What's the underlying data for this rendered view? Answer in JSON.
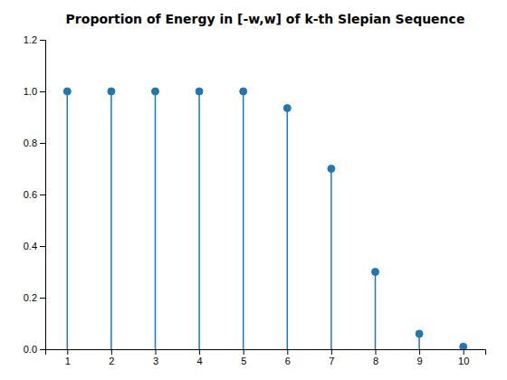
{
  "chart_data": {
    "type": "stem",
    "title": "Proportion of Energy in [-w,w] of k-th Slepian Sequence",
    "x": [
      1,
      2,
      3,
      4,
      5,
      6,
      7,
      8,
      9,
      10
    ],
    "values": [
      1.0,
      1.0,
      1.0,
      1.0,
      1.0,
      0.935,
      0.7,
      0.3,
      0.06,
      0.01
    ],
    "color": "#1f77b4",
    "marker": "circle",
    "xlim": [
      0.5,
      10.5
    ],
    "ylim": [
      0,
      1.2
    ],
    "xticks": [
      1,
      2,
      3,
      4,
      5,
      6,
      7,
      8,
      9,
      10
    ],
    "yticks": [
      {
        "value": 0,
        "label": "0.0"
      },
      0.2,
      0.4,
      0.6,
      0.8,
      {
        "value": 1.0,
        "label": "1.0"
      },
      1.2
    ]
  }
}
